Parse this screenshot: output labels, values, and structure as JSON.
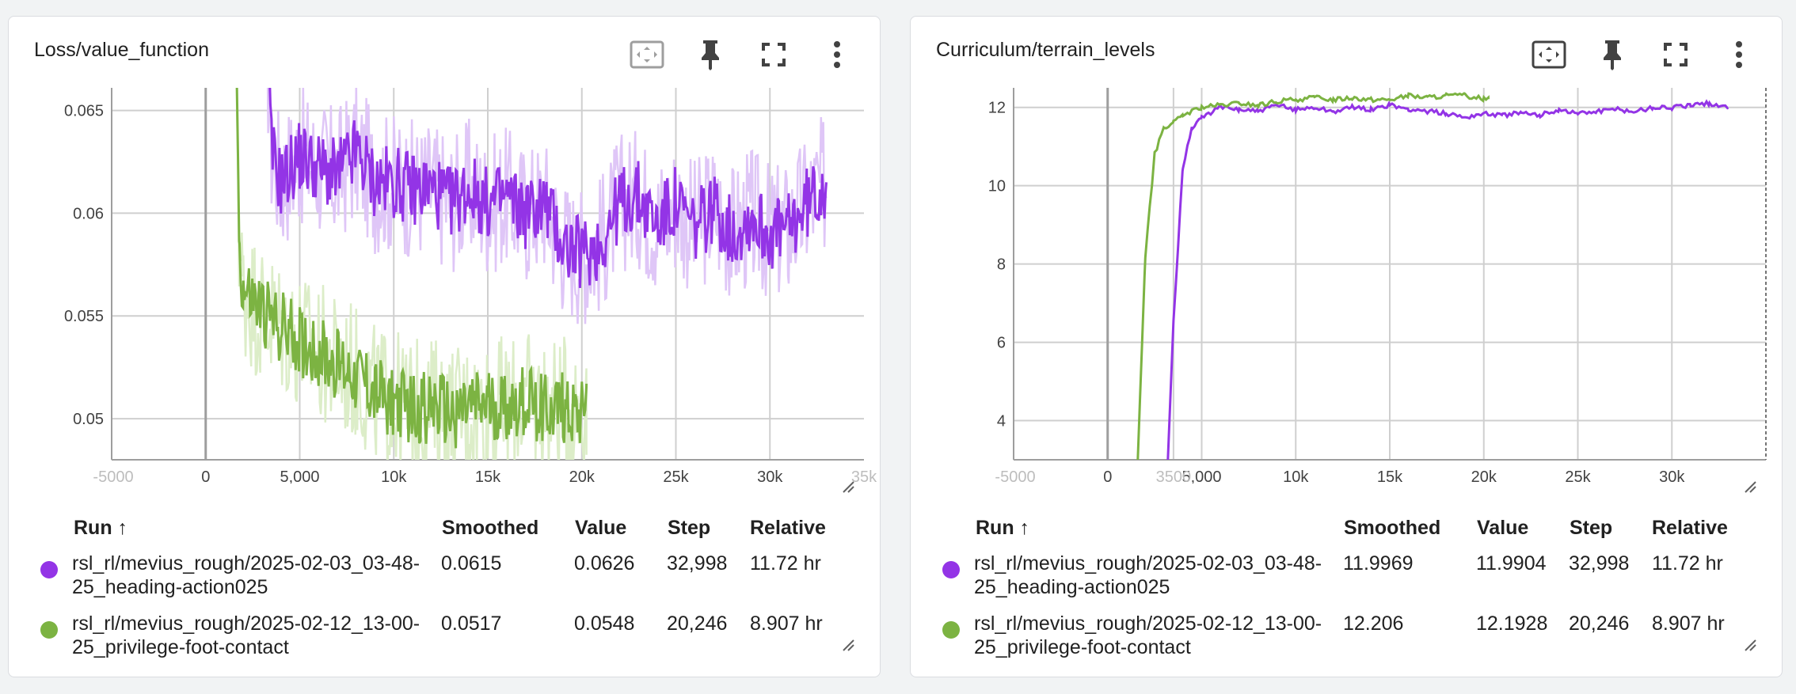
{
  "table": {
    "headers": {
      "run": "Run ↑",
      "smoothed": "Smoothed",
      "value": "Value",
      "step": "Step",
      "relative": "Relative"
    }
  },
  "icons": [
    "fit-domain-icon",
    "pin-icon",
    "fullscreen-icon",
    "more-vert-icon"
  ],
  "colors": {
    "series1": "#9334e6",
    "series1_raw": "#dfc6f7",
    "series2": "#7cb342",
    "series2_raw": "#dcedc8"
  },
  "chart_data": [
    {
      "type": "line",
      "title": "Loss/value_function",
      "x_tick_labels": [
        "-5000",
        "0",
        "5,000",
        "10k",
        "15k",
        "20k",
        "25k",
        "30k",
        "35k"
      ],
      "y_tick_labels": [
        "0.05",
        "0.055",
        "0.06",
        "0.065"
      ],
      "xlim": [
        -5000,
        35000
      ],
      "ylim": [
        0.048,
        0.0661
      ],
      "grid": true,
      "series": [
        {
          "name": "rsl_rl/mevius_rough/2025-02-03_03-48-25_heading-action025",
          "color": "#9334e6",
          "smoothed": "0.0615",
          "value": "0.0626",
          "step": "32,998",
          "relative": "11.72 hr",
          "x": [
            3200,
            3500,
            4000,
            5000,
            6000,
            7000,
            8000,
            9000,
            10000,
            11000,
            12000,
            13000,
            14000,
            15000,
            16000,
            17000,
            18000,
            19000,
            20000,
            21000,
            22000,
            23000,
            24000,
            25000,
            26000,
            27000,
            28000,
            29000,
            30000,
            31000,
            32000,
            32998
          ],
          "y": [
            0.0695,
            0.063,
            0.0615,
            0.0628,
            0.0622,
            0.0618,
            0.063,
            0.0615,
            0.0615,
            0.0612,
            0.0612,
            0.0605,
            0.0612,
            0.0604,
            0.0608,
            0.06,
            0.0605,
            0.0585,
            0.058,
            0.0585,
            0.0605,
            0.0608,
            0.0595,
            0.0605,
            0.0592,
            0.0603,
            0.059,
            0.0598,
            0.059,
            0.0592,
            0.0605,
            0.0615
          ]
        },
        {
          "name": "rsl_rl/mevius_rough/2025-02-12_13-00-25_privilege-foot-contact",
          "color": "#7cb342",
          "smoothed": "0.0517",
          "value": "0.0548",
          "step": "20,246",
          "relative": "8.907 hr",
          "x": [
            1600,
            1800,
            2000,
            3000,
            4000,
            5000,
            6000,
            7000,
            8000,
            9000,
            10000,
            11000,
            12000,
            13000,
            14000,
            15000,
            16000,
            17000,
            18000,
            19000,
            20000,
            20246
          ],
          "y": [
            0.0695,
            0.058,
            0.0562,
            0.0552,
            0.0545,
            0.0538,
            0.0532,
            0.0526,
            0.0522,
            0.0512,
            0.0508,
            0.0504,
            0.0506,
            0.0502,
            0.0505,
            0.0506,
            0.0505,
            0.0508,
            0.0506,
            0.0505,
            0.0505,
            0.0517
          ]
        }
      ]
    },
    {
      "type": "line",
      "title": "Curriculum/terrain_levels",
      "x_tick_labels": [
        "-5000",
        "0",
        "5,000",
        "10k",
        "15k",
        "20k",
        "25k",
        "30k",
        "3500"
      ],
      "y_tick_labels": [
        "4",
        "6",
        "8",
        "10",
        "12"
      ],
      "xlim": [
        -5000,
        35000
      ],
      "ylim": [
        3,
        12.5
      ],
      "grid": true,
      "series": [
        {
          "name": "rsl_rl/mevius_rough/2025-02-03_03-48-25_heading-action025",
          "color": "#9334e6",
          "smoothed": "11.9969",
          "value": "11.9904",
          "step": "32,998",
          "relative": "11.72 hr",
          "x": [
            3200,
            3500,
            4000,
            4500,
            5000,
            6000,
            7000,
            8000,
            9000,
            10000,
            11000,
            12000,
            13000,
            14000,
            15000,
            16000,
            17000,
            18000,
            19000,
            20000,
            21000,
            22000,
            23000,
            24000,
            25000,
            26000,
            27000,
            28000,
            29000,
            30000,
            31000,
            32000,
            32998
          ],
          "y": [
            3,
            6.5,
            10.5,
            11.5,
            11.75,
            12.0,
            11.95,
            11.9,
            12.05,
            11.95,
            12.0,
            11.9,
            12.0,
            11.95,
            12.05,
            11.95,
            11.9,
            11.85,
            11.75,
            11.85,
            11.8,
            11.85,
            11.8,
            11.95,
            11.85,
            11.9,
            11.95,
            11.9,
            12.0,
            12.0,
            12.05,
            12.1,
            11.99
          ]
        },
        {
          "name": "rsl_rl/mevius_rough/2025-02-12_13-00-25_privilege-foot-contact",
          "color": "#7cb342",
          "smoothed": "12.206",
          "value": "12.1928",
          "step": "20,246",
          "relative": "8.907 hr",
          "x": [
            1600,
            2000,
            2500,
            3000,
            3500,
            4000,
            5000,
            6000,
            7000,
            8000,
            9000,
            10000,
            11000,
            12000,
            13000,
            14000,
            15000,
            16000,
            17000,
            18000,
            19000,
            20000,
            20246
          ],
          "y": [
            3,
            8.2,
            10.8,
            11.5,
            11.6,
            11.8,
            12.0,
            12.05,
            12.1,
            12.05,
            12.15,
            12.2,
            12.25,
            12.2,
            12.25,
            12.2,
            12.2,
            12.3,
            12.25,
            12.3,
            12.3,
            12.22,
            12.21
          ]
        }
      ]
    }
  ]
}
